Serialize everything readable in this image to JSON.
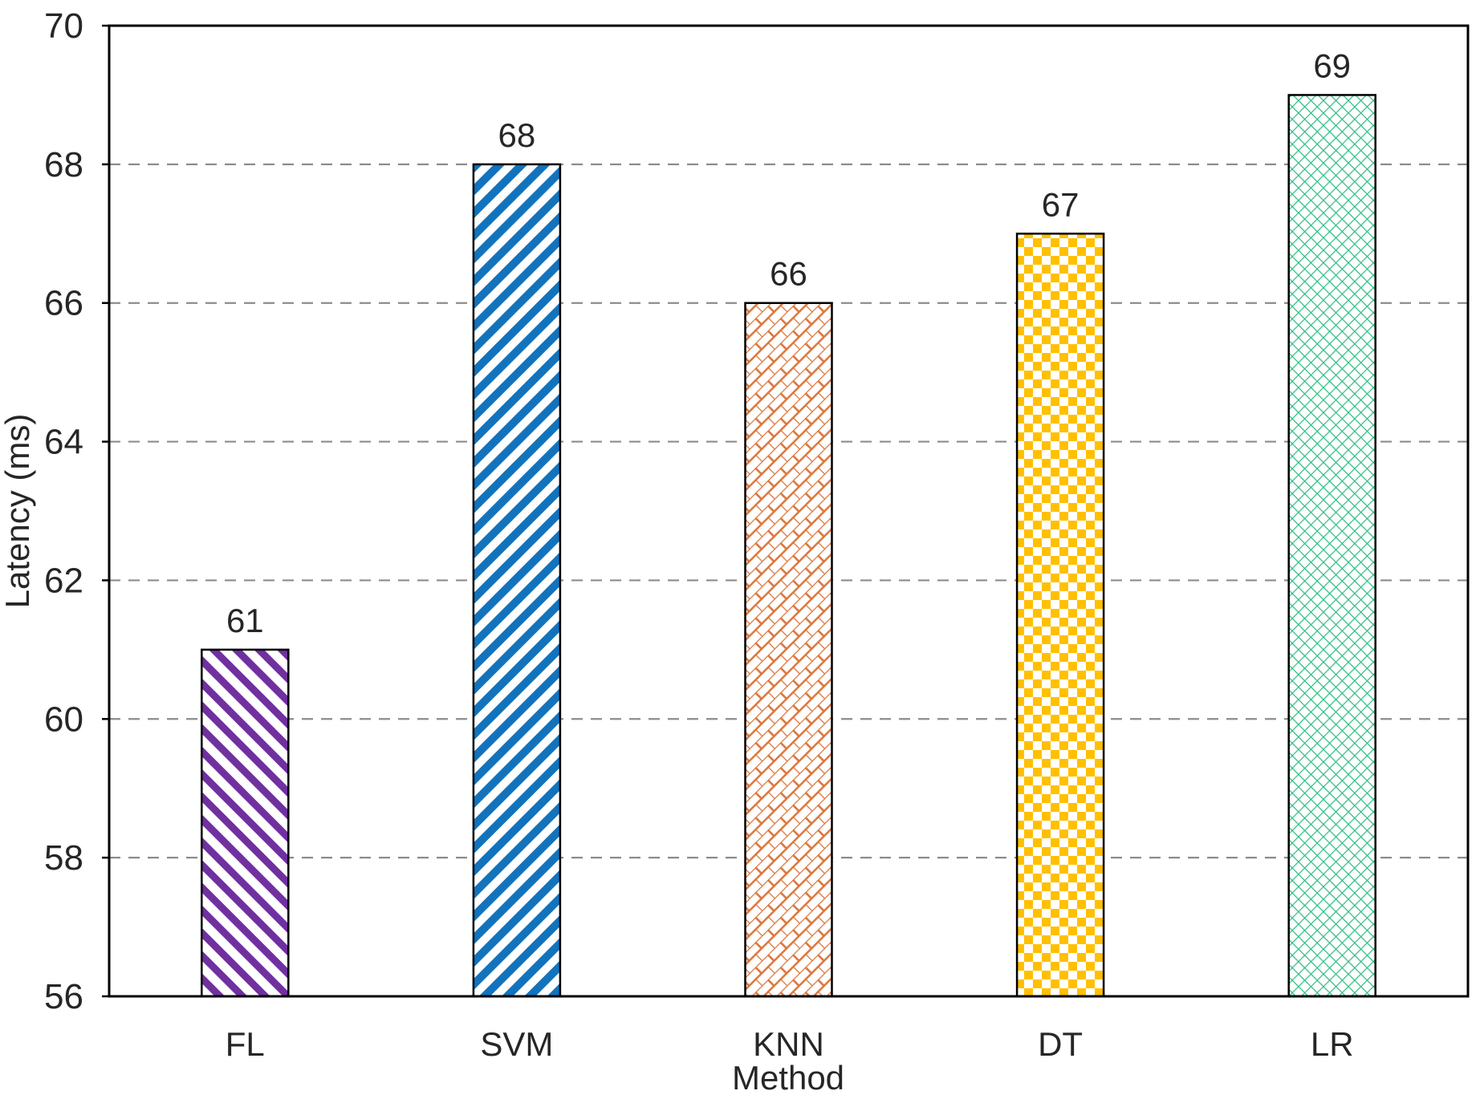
{
  "chart_data": {
    "type": "bar",
    "title": "",
    "xlabel": "Method",
    "ylabel": "Latency (ms)",
    "categories": [
      "FL",
      "SVM",
      "KNN",
      "DT",
      "LR"
    ],
    "values": [
      61,
      68,
      66,
      67,
      69
    ],
    "value_labels": [
      "61",
      "68",
      "66",
      "67",
      "69"
    ],
    "ylim": [
      56,
      70
    ],
    "yticks": [
      56,
      58,
      60,
      62,
      64,
      66,
      68,
      70
    ],
    "ytick_labels": [
      "56",
      "58",
      "60",
      "62",
      "64",
      "66",
      "68",
      "70"
    ],
    "grid": "horizontal-dashed",
    "legend": "none",
    "colors": {
      "background": "#ffffff",
      "gridline": "#8C8C8C",
      "axis": "#000000",
      "text": "#262626"
    },
    "bar_styles": [
      {
        "category": "FL",
        "color": "#7030A0",
        "pattern": "diagonal-stripe-down"
      },
      {
        "category": "SVM",
        "color": "#1273BC",
        "pattern": "diagonal-stripe-up"
      },
      {
        "category": "KNN",
        "color": "#DC7539",
        "pattern": "diagonal-brick"
      },
      {
        "category": "DT",
        "color": "#FFC000",
        "pattern": "checkerboard"
      },
      {
        "category": "LR",
        "color": "#2EBE82",
        "pattern": "diamond-mesh"
      }
    ]
  }
}
